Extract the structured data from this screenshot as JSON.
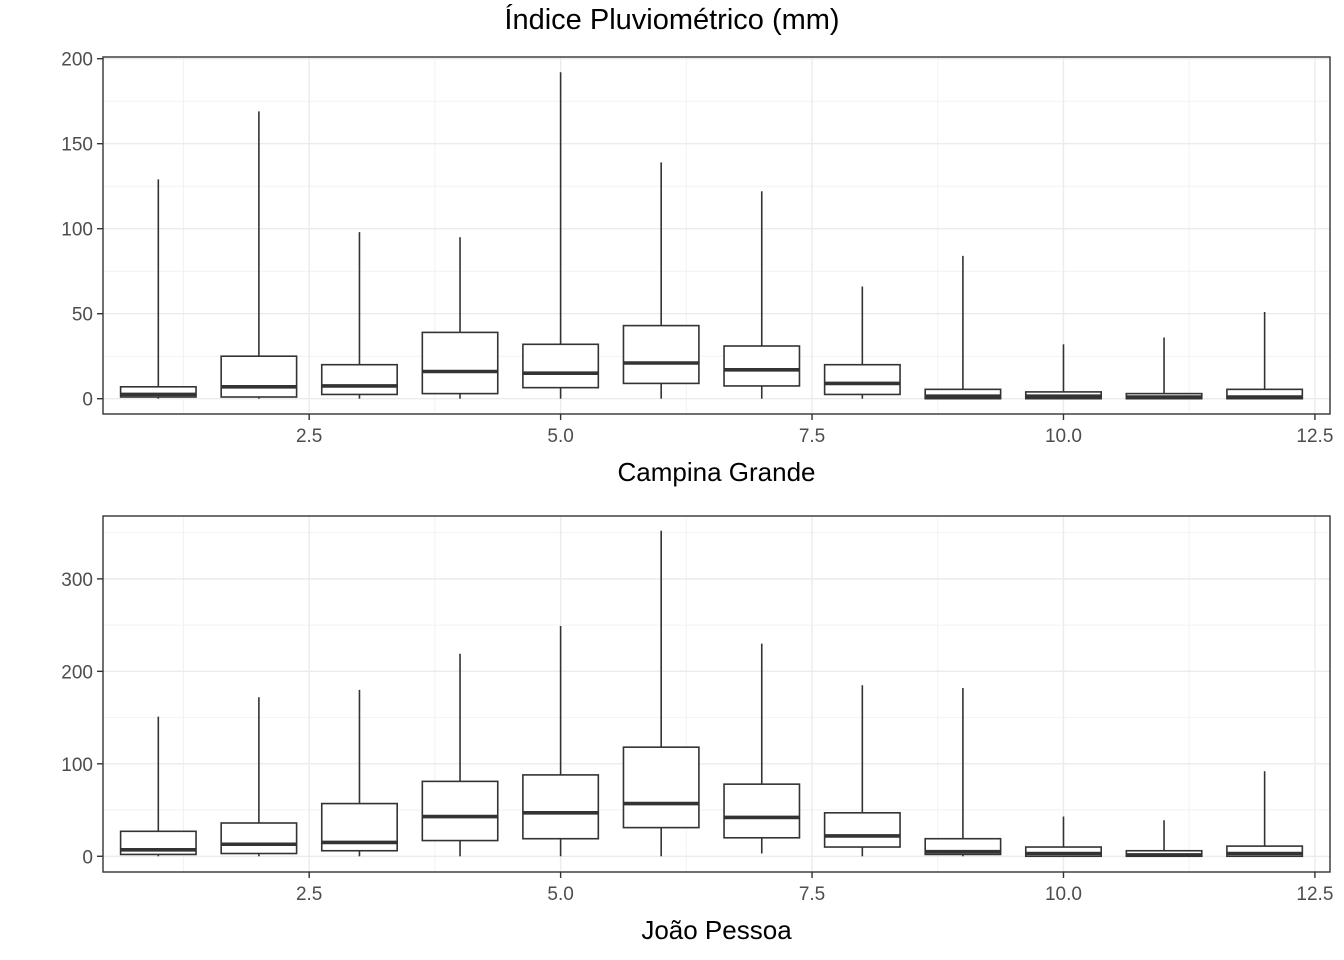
{
  "title": "Índice Pluviométrico (mm)",
  "chart_data": [
    {
      "type": "boxplot",
      "xlabel": "Campina Grande",
      "ylabel": "",
      "xlim": [
        0.45,
        12.65
      ],
      "ylim": [
        -9,
        201
      ],
      "xticks": [
        2.5,
        5.0,
        7.5,
        10.0,
        12.5
      ],
      "xtick_labels": [
        "2.5",
        "5.0",
        "7.5",
        "10.0",
        "12.5"
      ],
      "yticks": [
        0,
        50,
        100,
        150,
        200
      ],
      "ytick_labels": [
        "0",
        "50",
        "100",
        "150",
        "200"
      ],
      "grid": true,
      "boxes": [
        {
          "x": 1,
          "min": 0,
          "q1": 1,
          "median": 2.5,
          "q3": 7,
          "max": 129
        },
        {
          "x": 2,
          "min": 0,
          "q1": 1,
          "median": 7,
          "q3": 25,
          "max": 169
        },
        {
          "x": 3,
          "min": 0,
          "q1": 2.5,
          "median": 7.5,
          "q3": 20,
          "max": 98
        },
        {
          "x": 4,
          "min": 0,
          "q1": 3,
          "median": 16,
          "q3": 39,
          "max": 95
        },
        {
          "x": 5,
          "min": 0,
          "q1": 6.5,
          "median": 15,
          "q3": 32,
          "max": 192
        },
        {
          "x": 6,
          "min": 0,
          "q1": 9,
          "median": 21,
          "q3": 43,
          "max": 139
        },
        {
          "x": 7,
          "min": 0,
          "q1": 7.5,
          "median": 17,
          "q3": 31,
          "max": 122
        },
        {
          "x": 8,
          "min": 0,
          "q1": 2.5,
          "median": 9,
          "q3": 20,
          "max": 66
        },
        {
          "x": 9,
          "min": 0,
          "q1": 0,
          "median": 1.5,
          "q3": 5.5,
          "max": 84
        },
        {
          "x": 10,
          "min": 0,
          "q1": 0,
          "median": 1.5,
          "q3": 4,
          "max": 32
        },
        {
          "x": 11,
          "min": 0,
          "q1": 0,
          "median": 1,
          "q3": 3,
          "max": 36
        },
        {
          "x": 12,
          "min": 0,
          "q1": 0,
          "median": 1,
          "q3": 5.5,
          "max": 51
        }
      ]
    },
    {
      "type": "boxplot",
      "xlabel": "João Pessoa",
      "ylabel": "",
      "xlim": [
        0.45,
        12.65
      ],
      "ylim": [
        -17,
        368
      ],
      "xticks": [
        2.5,
        5.0,
        7.5,
        10.0,
        12.5
      ],
      "xtick_labels": [
        "2.5",
        "5.0",
        "7.5",
        "10.0",
        "12.5"
      ],
      "yticks": [
        0,
        100,
        200,
        300
      ],
      "ytick_labels": [
        "0",
        "100",
        "200",
        "300"
      ],
      "grid": true,
      "boxes": [
        {
          "x": 1,
          "min": 0,
          "q1": 2,
          "median": 7,
          "q3": 27,
          "max": 151
        },
        {
          "x": 2,
          "min": 0,
          "q1": 3,
          "median": 13,
          "q3": 36,
          "max": 172
        },
        {
          "x": 3,
          "min": 0,
          "q1": 6,
          "median": 15,
          "q3": 57,
          "max": 180
        },
        {
          "x": 4,
          "min": 0,
          "q1": 17,
          "median": 43,
          "q3": 81,
          "max": 219
        },
        {
          "x": 5,
          "min": 0,
          "q1": 19,
          "median": 47,
          "q3": 88,
          "max": 249
        },
        {
          "x": 6,
          "min": 0,
          "q1": 31,
          "median": 57,
          "q3": 118,
          "max": 352
        },
        {
          "x": 7,
          "min": 3,
          "q1": 20,
          "median": 42,
          "q3": 78,
          "max": 230
        },
        {
          "x": 8,
          "min": 0,
          "q1": 10,
          "median": 22,
          "q3": 47,
          "max": 185
        },
        {
          "x": 9,
          "min": 0,
          "q1": 2,
          "median": 5,
          "q3": 19,
          "max": 182
        },
        {
          "x": 10,
          "min": 0,
          "q1": 0,
          "median": 3,
          "q3": 10,
          "max": 43
        },
        {
          "x": 11,
          "min": 0,
          "q1": 0,
          "median": 1.5,
          "q3": 6,
          "max": 39
        },
        {
          "x": 12,
          "min": 0,
          "q1": 0,
          "median": 3,
          "q3": 11,
          "max": 92
        }
      ]
    }
  ]
}
